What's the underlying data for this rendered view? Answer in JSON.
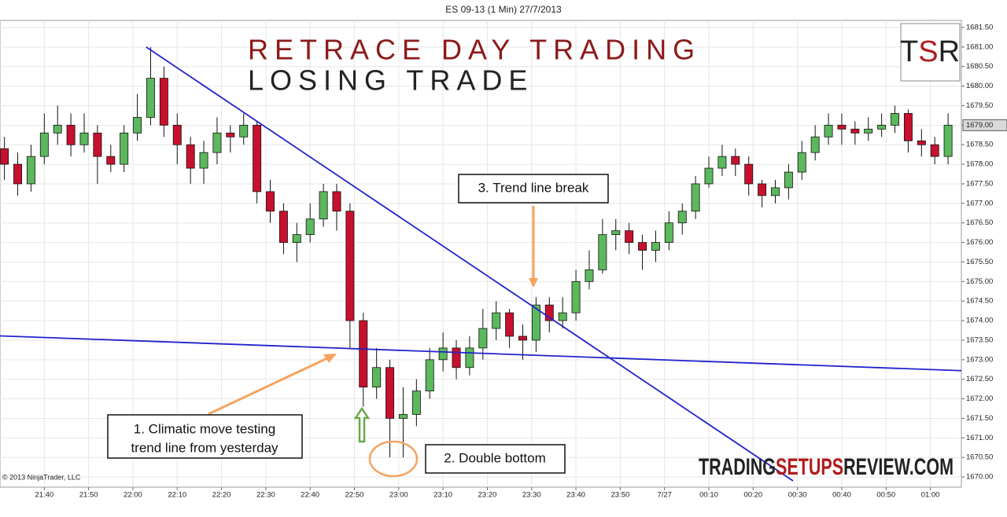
{
  "chart_data": {
    "type": "candlestick",
    "header": "ES 09-13 (1 Min)  27/7/2013",
    "title": "RETRACE DAY TRADING",
    "subtitle": "LOSING TRADE",
    "copyright": "© 2013 NinjaTrader, LLC",
    "logo": [
      "T",
      "S",
      "R"
    ],
    "watermark": [
      "TRADING",
      "SETUPS",
      "REVIEW.COM"
    ],
    "annotations": [
      [
        "1. Climatic move testing",
        "trend line  from yesterday"
      ],
      [
        "2. Double bottom"
      ],
      [
        "3. Trend line break"
      ]
    ],
    "up_color": "#5cb85c",
    "down_color": "#c8102e",
    "grid": true,
    "x": [
      "21:31",
      "21:34",
      "21:37",
      "21:40",
      "21:43",
      "21:46",
      "21:49",
      "21:52",
      "21:55",
      "21:58",
      "22:01",
      "22:04",
      "22:07",
      "22:10",
      "22:13",
      "22:16",
      "22:19",
      "22:22",
      "22:25",
      "22:28",
      "22:31",
      "22:34",
      "22:37",
      "22:40",
      "22:43",
      "22:46",
      "22:49",
      "22:52",
      "22:55",
      "22:58",
      "23:01",
      "23:04",
      "23:07",
      "23:10",
      "23:13",
      "23:16",
      "23:19",
      "23:22",
      "23:25",
      "23:28",
      "23:31",
      "23:34",
      "23:37",
      "23:40",
      "23:43",
      "23:46",
      "23:49",
      "23:52",
      "23:55",
      "23:58",
      "00:01",
      "00:04",
      "00:07",
      "00:10",
      "00:13",
      "00:16",
      "00:19",
      "00:22",
      "00:25",
      "00:28",
      "00:31",
      "00:34",
      "00:37",
      "00:40",
      "00:43",
      "00:46",
      "00:49",
      "00:52",
      "00:55",
      "00:58",
      "01:01",
      "01:04"
    ],
    "open": [
      1678.4,
      1678.0,
      1677.5,
      1678.2,
      1678.8,
      1679.0,
      1678.5,
      1678.8,
      1678.2,
      1678.0,
      1678.8,
      1679.2,
      1680.2,
      1679.0,
      1678.5,
      1677.9,
      1678.3,
      1678.8,
      1678.7,
      1679.0,
      1677.3,
      1676.8,
      1676.0,
      1676.2,
      1676.6,
      1677.3,
      1676.8,
      1674.0,
      1672.3,
      1672.8,
      1671.5,
      1671.6,
      1672.2,
      1673.0,
      1673.3,
      1672.8,
      1673.3,
      1673.8,
      1674.2,
      1673.6,
      1673.5,
      1674.4,
      1674.0,
      1674.2,
      1675.0,
      1675.3,
      1676.2,
      1676.3,
      1676.0,
      1675.8,
      1676.0,
      1676.5,
      1676.8,
      1677.5,
      1677.9,
      1678.2,
      1678.0,
      1677.5,
      1677.2,
      1677.4,
      1677.8,
      1678.3,
      1678.7,
      1679.0,
      1678.9,
      1678.8,
      1678.9,
      1679.0,
      1679.3,
      1678.6,
      1678.5,
      1678.2
    ],
    "high": [
      1678.7,
      1678.3,
      1678.5,
      1679.3,
      1679.5,
      1679.3,
      1679.3,
      1679.0,
      1678.5,
      1679.0,
      1679.8,
      1681.0,
      1680.5,
      1679.3,
      1678.7,
      1678.6,
      1679.2,
      1679.0,
      1679.3,
      1679.1,
      1677.6,
      1677.0,
      1676.5,
      1677.0,
      1677.5,
      1677.5,
      1677.0,
      1674.2,
      1673.3,
      1673.0,
      1672.3,
      1672.5,
      1673.3,
      1673.7,
      1673.5,
      1673.6,
      1674.3,
      1674.5,
      1674.3,
      1673.9,
      1674.6,
      1674.6,
      1674.6,
      1675.3,
      1675.8,
      1676.6,
      1676.6,
      1676.5,
      1676.2,
      1676.3,
      1676.8,
      1677.0,
      1677.7,
      1678.2,
      1678.5,
      1678.4,
      1678.2,
      1677.6,
      1677.6,
      1678.0,
      1678.6,
      1679.0,
      1679.3,
      1679.3,
      1679.1,
      1679.2,
      1679.3,
      1679.5,
      1679.4,
      1678.9,
      1678.7,
      1679.3
    ],
    "low": [
      1677.6,
      1677.2,
      1677.3,
      1678.0,
      1678.5,
      1678.2,
      1678.3,
      1677.5,
      1677.8,
      1677.8,
      1678.6,
      1679.0,
      1678.7,
      1678.0,
      1677.5,
      1677.5,
      1678.0,
      1678.3,
      1678.5,
      1677.0,
      1676.5,
      1675.7,
      1675.5,
      1676.0,
      1676.4,
      1676.3,
      1673.3,
      1671.8,
      1672.0,
      1670.5,
      1670.5,
      1671.3,
      1672.0,
      1672.7,
      1672.5,
      1672.6,
      1673.0,
      1673.5,
      1673.3,
      1673.0,
      1673.2,
      1673.7,
      1673.8,
      1674.0,
      1674.8,
      1675.2,
      1675.8,
      1675.7,
      1675.3,
      1675.5,
      1675.8,
      1676.2,
      1676.6,
      1677.4,
      1677.7,
      1677.7,
      1677.2,
      1676.9,
      1677.0,
      1677.1,
      1677.6,
      1678.1,
      1678.5,
      1678.5,
      1678.5,
      1678.6,
      1678.7,
      1678.8,
      1678.3,
      1678.2,
      1678.0,
      1678.0
    ],
    "close": [
      1678.0,
      1677.5,
      1678.2,
      1678.8,
      1679.0,
      1678.5,
      1678.8,
      1678.2,
      1678.0,
      1678.8,
      1679.2,
      1680.2,
      1679.0,
      1678.5,
      1677.9,
      1678.3,
      1678.8,
      1678.7,
      1679.0,
      1677.3,
      1676.8,
      1676.0,
      1676.2,
      1676.6,
      1677.3,
      1676.8,
      1674.0,
      1672.3,
      1672.8,
      1671.5,
      1671.6,
      1672.2,
      1673.0,
      1673.3,
      1672.8,
      1673.3,
      1673.8,
      1674.2,
      1673.6,
      1673.5,
      1674.4,
      1674.0,
      1674.2,
      1675.0,
      1675.3,
      1676.2,
      1676.3,
      1676.0,
      1675.8,
      1676.0,
      1676.5,
      1676.8,
      1677.5,
      1677.9,
      1678.2,
      1678.0,
      1677.5,
      1677.2,
      1677.4,
      1677.8,
      1678.3,
      1678.7,
      1679.0,
      1678.9,
      1678.8,
      1678.9,
      1679.0,
      1679.3,
      1678.6,
      1678.5,
      1678.2,
      1679.0
    ],
    "last_price": {
      "value": 1679.0,
      "label": "1679.00"
    },
    "trend_lines": [
      {
        "color": "#2222cc",
        "x": [
          "22:03",
          "00:29"
        ],
        "y": [
          1681.0,
          1669.9
        ]
      },
      {
        "color": "#2222cc",
        "x": [
          "21:30",
          "01:07"
        ],
        "y": [
          1673.61,
          1672.72
        ]
      }
    ],
    "xlim": [
      "21:30",
      "01:07"
    ],
    "xticks": [
      "21:40",
      "21:50",
      "22:00",
      "22:10",
      "22:20",
      "22:30",
      "22:40",
      "22:50",
      "23:00",
      "23:10",
      "23:20",
      "23:30",
      "23:40",
      "23:50",
      {
        "value": "00:00",
        "label": "7/27"
      },
      "00:10",
      "00:20",
      "00:30",
      "00:40",
      "00:50",
      "01:00"
    ],
    "ylim": [
      1669.74,
      1681.68
    ],
    "yticks": [
      {
        "value": 1670.0,
        "label": "1670.00"
      },
      {
        "value": 1670.5,
        "label": "1670.50"
      },
      {
        "value": 1671.0,
        "label": "1671.00"
      },
      {
        "value": 1671.5,
        "label": "1671.50"
      },
      {
        "value": 1672.0,
        "label": "1672.00"
      },
      {
        "value": 1672.5,
        "label": "1672.50"
      },
      {
        "value": 1673.0,
        "label": "1673.00"
      },
      {
        "value": 1673.5,
        "label": "1673.50"
      },
      {
        "value": 1674.0,
        "label": "1674.00"
      },
      {
        "value": 1674.5,
        "label": "1674.50"
      },
      {
        "value": 1675.0,
        "label": "1675.00"
      },
      {
        "value": 1675.5,
        "label": "1675.50"
      },
      {
        "value": 1676.0,
        "label": "1676.00"
      },
      {
        "value": 1676.5,
        "label": "1676.50"
      },
      {
        "value": 1677.0,
        "label": "1677.00"
      },
      {
        "value": 1677.5,
        "label": "1677.50"
      },
      {
        "value": 1678.0,
        "label": "1678.00"
      },
      {
        "value": 1678.5,
        "label": "1678.50"
      },
      {
        "value": 1679.0,
        "label": "1679.00"
      },
      {
        "value": 1679.5,
        "label": "1679.50"
      },
      {
        "value": 1680.0,
        "label": "1680.00"
      },
      {
        "value": 1680.5,
        "label": "1680.50"
      },
      {
        "value": 1681.0,
        "label": "1681.00"
      },
      {
        "value": 1681.5,
        "label": "1681.50"
      }
    ]
  }
}
